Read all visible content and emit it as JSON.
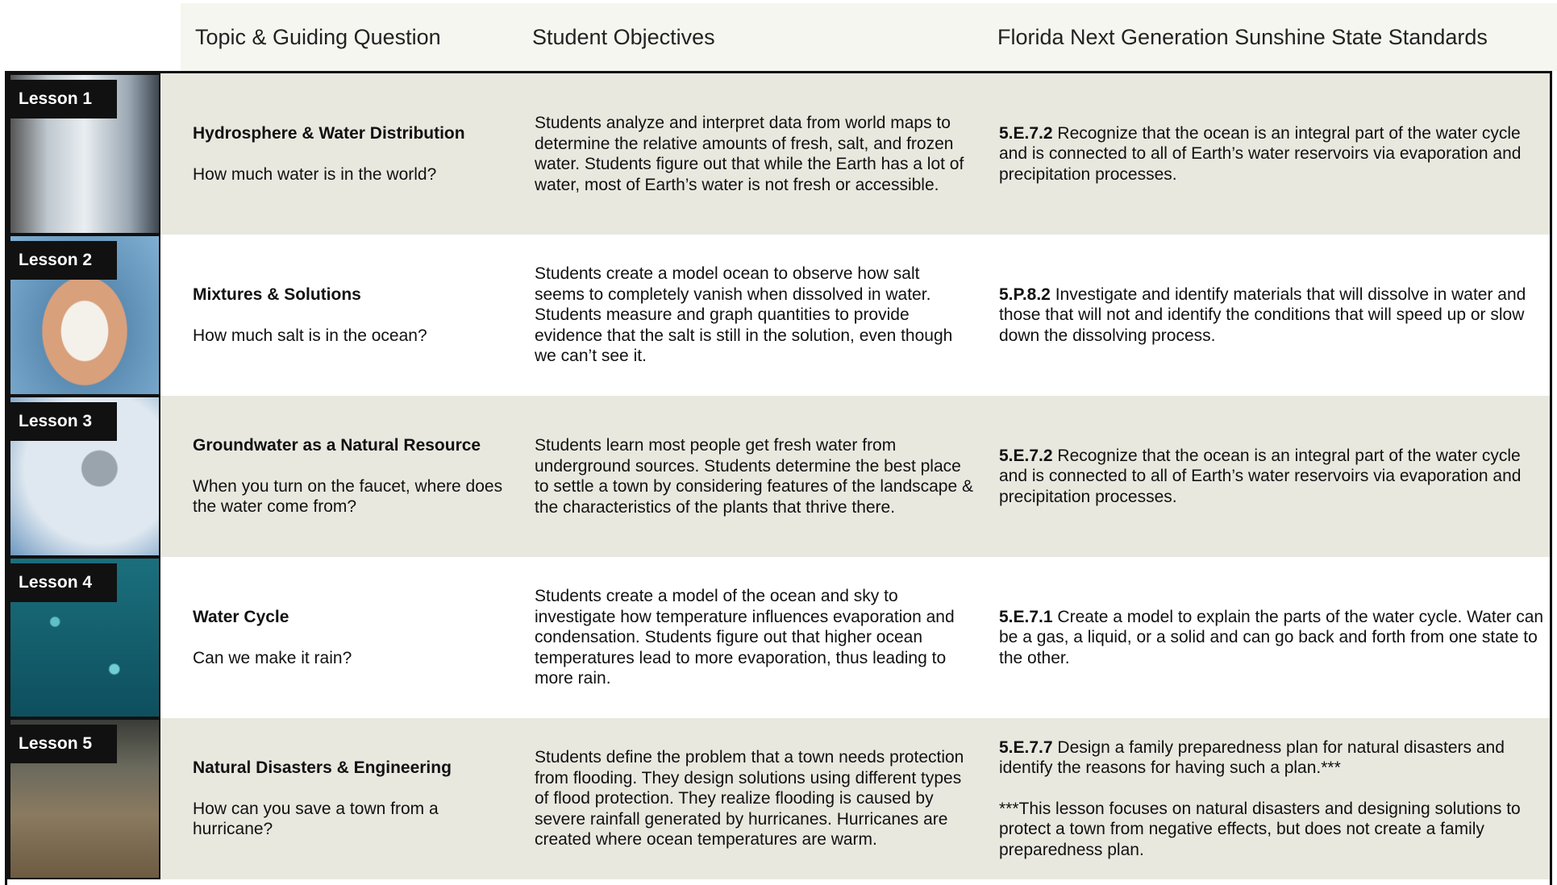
{
  "header": {
    "columns": [
      "Topic & Guiding Question",
      "Student Objectives",
      "Florida Next Generation Sunshine State Standards"
    ]
  },
  "lessons": [
    {
      "label": "Lesson 1",
      "topic": "Hydrosphere & Water Distribution",
      "question": "How much water is in the world?",
      "objectives": "Students analyze and interpret data from world maps to determine the relative amounts of fresh, salt, and frozen water. Students figure out that while the Earth has a lot of water, most of Earth’s water is not fresh or accessible.",
      "standard_code": "5.E.7.2",
      "standard_text": "Recognize that the ocean is an integral part of the water cycle and is connected to all of Earth’s water reservoirs via evaporation and precipitation processes."
    },
    {
      "label": "Lesson 2",
      "topic": "Mixtures & Solutions",
      "question": "How much salt is in the ocean?",
      "objectives": "Students create a model ocean to observe how salt seems to completely vanish when dissolved in water. Students measure and graph quantities to provide evidence that the salt is still in the solution, even though we can’t see it.",
      "standard_code": "5.P.8.2",
      "standard_text": "Investigate and identify materials that will dissolve in water and those that will not and identify the conditions that will speed up or slow down the dissolving process."
    },
    {
      "label": "Lesson 3",
      "topic": "Groundwater as a Natural Resource",
      "question": "When you turn on the faucet, where does the water come from?",
      "objectives": "Students learn most people get fresh water from underground sources. Students determine the best place to settle a town by considering features of the landscape & the characteristics of the plants that thrive there.",
      "standard_code": "5.E.7.2",
      "standard_text": "Recognize that the ocean is an integral part of the water cycle and is connected to all of Earth’s water reservoirs via evaporation and precipitation processes."
    },
    {
      "label": "Lesson 4",
      "topic": "Water Cycle",
      "question": "Can we make it rain?",
      "objectives": "Students create a model of the ocean and sky to investigate how temperature influences evaporation and condensation. Students figure out that higher ocean temperatures lead to more evaporation, thus leading to more rain.",
      "standard_code": "5.E.7.1",
      "standard_text": "Create a model to explain the parts of the water cycle. Water can be a gas, a liquid, or a solid and can go back and forth from one state to the other."
    },
    {
      "label": "Lesson 5",
      "topic": "Natural Disasters & Engineering",
      "question": "How can you save a town from a hurricane?",
      "objectives": "Students define the problem that a town needs protection from flooding. They design solutions using different types of flood protection. They realize flooding is caused by severe rainfall generated by hurricanes. Hurricanes are created where ocean temperatures are warm.",
      "standard_code": "5.E.7.7",
      "standard_text": "Design a family preparedness plan for natural disasters and identify the reasons for having such a plan.***",
      "note": "***This lesson focuses on natural disasters and designing solutions to protect a town from negative effects, but does not create a family preparedness plan."
    }
  ]
}
